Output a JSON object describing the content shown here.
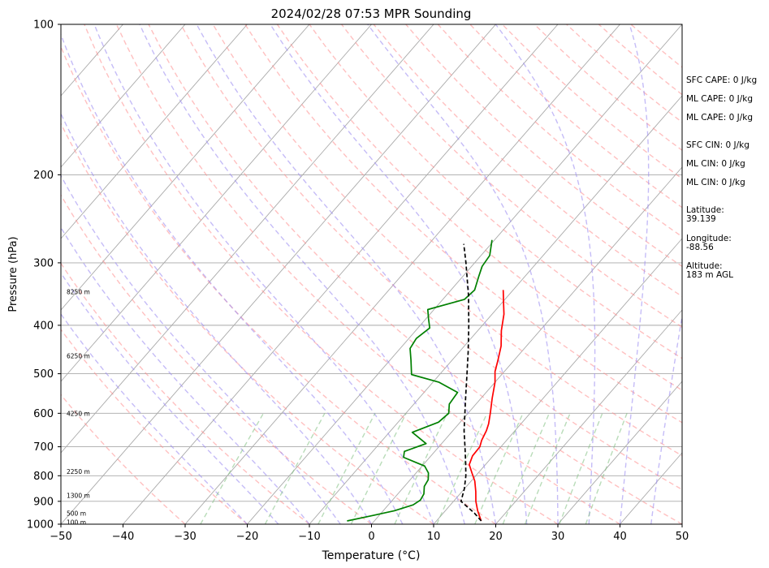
{
  "chart_data": {
    "type": "line",
    "title": "2024/02/28 07:53 MPR Sounding",
    "xlabel": "Temperature (°C)",
    "ylabel": "Pressure (hPa)",
    "xlim": [
      -50,
      50
    ],
    "ylim": [
      1000,
      100
    ],
    "y_scale": "log",
    "x_ticks": [
      "−50",
      "−40",
      "−30",
      "−20",
      "−10",
      "0",
      "10",
      "20",
      "30",
      "40",
      "50"
    ],
    "y_ticks": [
      {
        "p": 100,
        "label": "100"
      },
      {
        "p": 200,
        "label": "200"
      },
      {
        "p": 300,
        "label": "300"
      },
      {
        "p": 400,
        "label": "400"
      },
      {
        "p": 500,
        "label": "500"
      },
      {
        "p": 600,
        "label": "600"
      },
      {
        "p": 700,
        "label": "700"
      },
      {
        "p": 800,
        "label": "800"
      },
      {
        "p": 900,
        "label": "900"
      },
      {
        "p": 1000,
        "label": "1000"
      }
    ],
    "height_labels": [
      {
        "p": 990,
        "label": "100 m"
      },
      {
        "p": 950,
        "label": "500 m"
      },
      {
        "p": 875,
        "label": "1300 m"
      },
      {
        "p": 785,
        "label": "2250 m"
      },
      {
        "p": 600,
        "label": "4250 m"
      },
      {
        "p": 460,
        "label": "6250 m"
      },
      {
        "p": 343,
        "label": "8250 m"
      }
    ],
    "grid": true,
    "series": [
      {
        "key": "temperature",
        "color": "#ff0000",
        "points": [
          [
            340,
            -11.6
          ],
          [
            360,
            -9.8
          ],
          [
            380,
            -8.1
          ],
          [
            410,
            -6.2
          ],
          [
            440,
            -4.1
          ],
          [
            470,
            -2.6
          ],
          [
            495,
            -1.5
          ],
          [
            520,
            0.0
          ],
          [
            560,
            1.8
          ],
          [
            600,
            3.6
          ],
          [
            630,
            4.8
          ],
          [
            650,
            5.4
          ],
          [
            680,
            6.0
          ],
          [
            700,
            6.6
          ],
          [
            730,
            6.7
          ],
          [
            760,
            7.4
          ],
          [
            790,
            9.0
          ],
          [
            820,
            10.6
          ],
          [
            860,
            12.2
          ],
          [
            900,
            13.6
          ],
          [
            940,
            15.2
          ],
          [
            985,
            17.2
          ]
        ]
      },
      {
        "key": "dewpoint",
        "color": "#008000",
        "points": [
          [
            270,
            -20.4
          ],
          [
            290,
            -18.6
          ],
          [
            305,
            -18.3
          ],
          [
            320,
            -17.4
          ],
          [
            340,
            -16.2
          ],
          [
            355,
            -16.5
          ],
          [
            372,
            -21.0
          ],
          [
            388,
            -19.6
          ],
          [
            405,
            -18.1
          ],
          [
            425,
            -18.8
          ],
          [
            445,
            -18.4
          ],
          [
            470,
            -16.6
          ],
          [
            502,
            -14.5
          ],
          [
            520,
            -9.0
          ],
          [
            545,
            -4.6
          ],
          [
            575,
            -4.3
          ],
          [
            600,
            -3.1
          ],
          [
            625,
            -3.5
          ],
          [
            655,
            -6.3
          ],
          [
            690,
            -2.5
          ],
          [
            715,
            -4.9
          ],
          [
            735,
            -4.2
          ],
          [
            765,
            0.4
          ],
          [
            790,
            2.0
          ],
          [
            815,
            2.9
          ],
          [
            840,
            3.2
          ],
          [
            870,
            4.2
          ],
          [
            895,
            4.5
          ],
          [
            915,
            4.0
          ],
          [
            940,
            1.8
          ],
          [
            960,
            -0.9
          ],
          [
            985,
            -4.4
          ]
        ]
      },
      {
        "key": "parcel",
        "color": "#000000",
        "dashed": true,
        "points": [
          [
            985,
            17.2
          ],
          [
            950,
            15.0
          ],
          [
            900,
            11.2
          ],
          [
            850,
            10.0
          ],
          [
            800,
            8.4
          ],
          [
            750,
            6.4
          ],
          [
            700,
            4.2
          ],
          [
            650,
            1.8
          ],
          [
            600,
            -0.5
          ],
          [
            550,
            -3.0
          ],
          [
            500,
            -5.7
          ],
          [
            450,
            -8.7
          ],
          [
            400,
            -12.2
          ],
          [
            350,
            -16.3
          ],
          [
            300,
            -21.4
          ],
          [
            275,
            -24.4
          ]
        ]
      }
    ],
    "reference_lines": {
      "isotherm_color": "#a9a9a9",
      "dry_adiabat_color": "#ff8c8c",
      "moist_adiabat_color": "#9f90f2",
      "mixing_ratio_color": "#7fbf7f"
    }
  },
  "stats": [
    {
      "label": "SFC CAPE: 0 J/kg"
    },
    {
      "label": "ML CAPE: 0 J/kg"
    },
    {
      "label": "ML CAPE: 0 J/kg"
    },
    {
      "label": "SFC CIN: 0 J/kg"
    },
    {
      "label": "ML CIN: 0 J/kg"
    },
    {
      "label": "ML CIN: 0 J/kg"
    }
  ],
  "location": {
    "latitude_label": "Latitude:",
    "latitude": "39.139",
    "longitude_label": "Longitude:",
    "longitude": "-88.56",
    "altitude_label": "Altitude:",
    "altitude": "183 m AGL"
  }
}
